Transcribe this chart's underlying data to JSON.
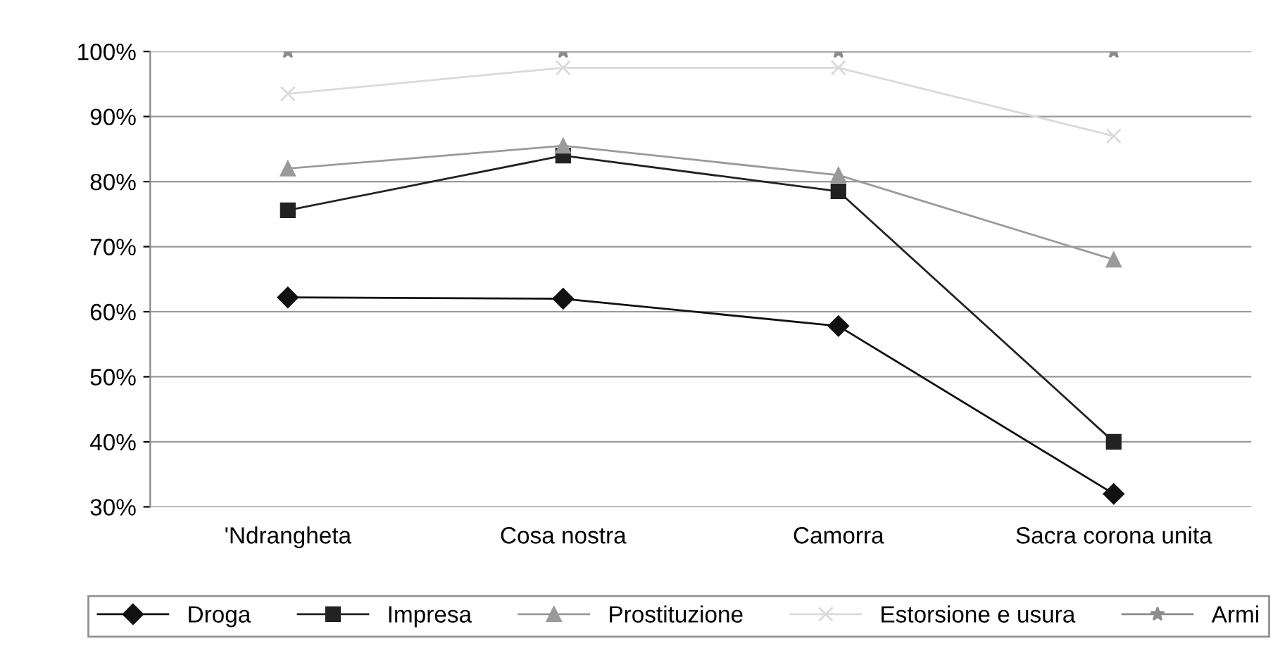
{
  "chart_data": {
    "type": "line",
    "categories": [
      "'Ndrangheta",
      "Cosa nostra",
      "Camorra",
      "Sacra corona unita"
    ],
    "series": [
      {
        "name": "Droga",
        "color": "#111111",
        "marker": "diamond",
        "values": [
          62.2,
          62,
          57.8,
          32
        ]
      },
      {
        "name": "Impresa",
        "color": "#222222",
        "marker": "square",
        "values": [
          75.6,
          84,
          78.5,
          40
        ]
      },
      {
        "name": "Prostituzione",
        "color": "#9a9a9a",
        "marker": "triangle",
        "values": [
          82,
          85.5,
          81,
          68
        ]
      },
      {
        "name": "Estorsione e usura",
        "color": "#dadada",
        "marker": "cross",
        "values": [
          93.5,
          97.5,
          97.5,
          87
        ]
      },
      {
        "name": "Armi",
        "color": "#8c8c8c",
        "marker": "star",
        "values": [
          100,
          100,
          100,
          100
        ]
      }
    ],
    "ylim": [
      30,
      100
    ],
    "yticks": [
      {
        "value": 30,
        "label": "30%"
      },
      {
        "value": 40,
        "label": "40%"
      },
      {
        "value": 50,
        "label": "50%"
      },
      {
        "value": 60,
        "label": "60%"
      },
      {
        "value": 70,
        "label": "70%"
      },
      {
        "value": 80,
        "label": "80%"
      },
      {
        "value": 90,
        "label": "90%"
      },
      {
        "value": 100,
        "label": "100%"
      }
    ],
    "grid": "y",
    "legend": "bottom"
  }
}
